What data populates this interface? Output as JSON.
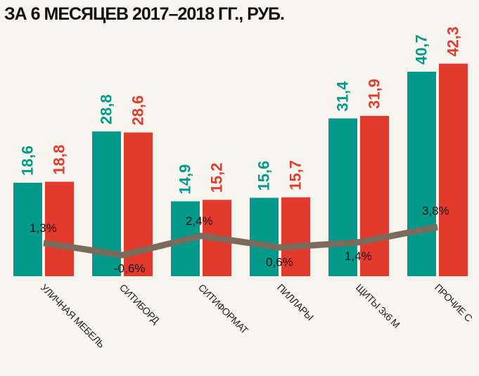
{
  "chart_data": {
    "type": "bar",
    "title": "ЗА 6 МЕСЯЦЕВ 2017–2018 ГГ., РУБ.",
    "categories": [
      "УЛИЧНАЯ МЕБЕЛЬ",
      "СИТИБОРД",
      "СИТИФОРМАТ",
      "ПИЛЛАРЫ",
      "ЩИТЫ 3х6 М",
      "ПРОЧИЕ С"
    ],
    "series": [
      {
        "color": "#00998a",
        "values": [
          18.6,
          28.8,
          14.9,
          15.6,
          31.4,
          40.7
        ],
        "value_labels": [
          "18,6",
          "28,8",
          "14,9",
          "15,6",
          "31,4",
          "40,7"
        ]
      },
      {
        "color": "#e23b2e",
        "values": [
          18.8,
          28.6,
          15.2,
          15.7,
          31.9,
          42.3
        ],
        "value_labels": [
          "18,8",
          "28,6",
          "15,2",
          "15,7",
          "31,9",
          "42,3"
        ]
      }
    ],
    "line": {
      "type": "line",
      "color": "#7b6b5d",
      "values": [
        1.3,
        -0.6,
        2.4,
        0.6,
        1.4,
        3.8
      ],
      "value_labels": [
        "1,3%",
        "-0,6%",
        "2,4%",
        "0,6%",
        "1,4%",
        "3,8%"
      ]
    }
  }
}
